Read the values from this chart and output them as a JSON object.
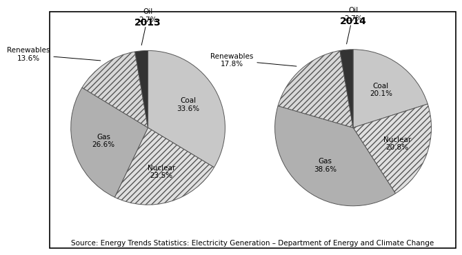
{
  "title_2013": "2013",
  "title_2014": "2014",
  "labels": [
    "Coal",
    "Nuclear",
    "Gas",
    "Renewables",
    "Oil"
  ],
  "values_2013": [
    33.6,
    23.5,
    26.6,
    13.6,
    2.7
  ],
  "values_2014": [
    20.1,
    20.8,
    38.6,
    17.8,
    2.7
  ],
  "colors": {
    "Coal": "#c8c8c8",
    "Nuclear": "#e0e0e0",
    "Gas": "#b0b0b0",
    "Renewables": "#d8d8d8",
    "Oil": "#333333"
  },
  "hatch": {
    "Coal": "",
    "Nuclear": "////",
    "Gas": "",
    "Renewables": "////",
    "Oil": ""
  },
  "source_text": "Source: Energy Trends Statistics: Electricity Generation – Department of Energy and Climate Change",
  "background_color": "#ffffff",
  "title_fontsize": 10,
  "label_fontsize": 7.5,
  "source_fontsize": 7.5
}
